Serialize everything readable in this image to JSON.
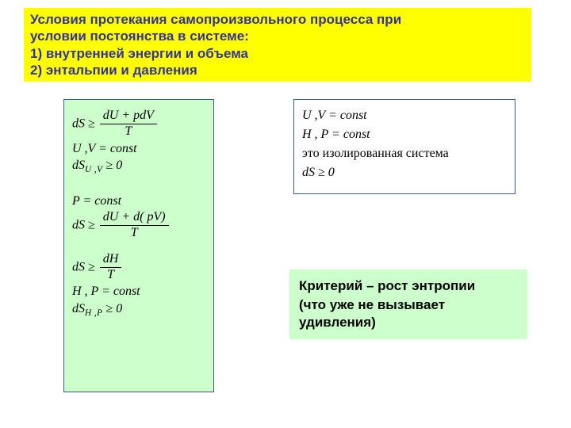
{
  "header": {
    "line1": "Условия протекания самопроизвольного процесса при",
    "line2": "условии постоянства в системе:",
    "line3": "1) внутренней энергии и объема",
    "line4": "2) энтальпии и давления"
  },
  "left": {
    "eq1_lhs": "dS ≥",
    "eq1_num": "dU + pdV",
    "eq1_den": "T",
    "eq2": "U ,V = const",
    "eq3_lhs": "dS",
    "eq3_sub": "U ,V",
    "eq3_rhs": " ≥ 0",
    "eq4": "P = const",
    "eq5_lhs": "dS ≥",
    "eq5_num": "dU + d( pV)",
    "eq5_den": "T",
    "eq6_lhs": "dS ≥",
    "eq6_num": "dH",
    "eq6_den": "T",
    "eq7": "H , P = const",
    "eq8_lhs": "dS",
    "eq8_sub": "H ,P",
    "eq8_rhs": " ≥ 0"
  },
  "right": {
    "eq1": "U ,V = const",
    "eq2": "H , P = const",
    "eq3": "это изолированная система",
    "eq4": "dS ≥ 0"
  },
  "criterion": {
    "line1": "Критерий – рост энтропии",
    "line2": "(что уже не вызывает удивления)"
  },
  "colors": {
    "yellow": "#ffff00",
    "green": "#ccffcc",
    "heading": "#333399",
    "border": "#385d8a"
  }
}
